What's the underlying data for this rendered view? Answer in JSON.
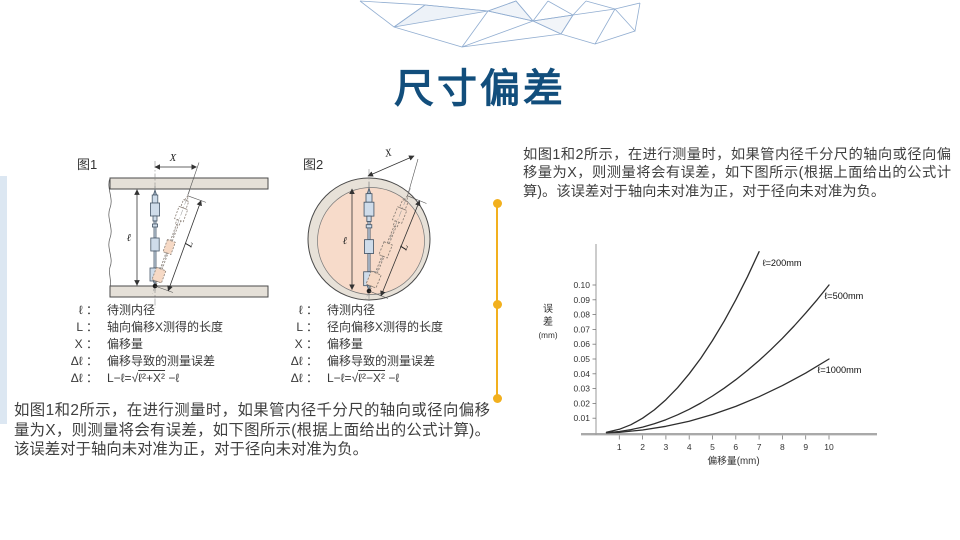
{
  "colors": {
    "title_text": "#124e7c",
    "accent": "#f2b01e",
    "leftbar": "#dce7f2"
  },
  "title": "尺寸偏差",
  "body_text": "如图1和2所示，在进行测量时，如果管内径千分尺的轴向或径向偏移量为X，则测量将会有误差，如下图所示(根据上面给出的公式计算)。该误差对于轴向未对准为正，对于径向未对准为负。",
  "figures": {
    "fig1": {
      "label": "图1",
      "dims": {
        "x": "X",
        "inner": "ℓ",
        "outer": "L"
      }
    },
    "fig2": {
      "label": "图2",
      "dims": {
        "x": "X",
        "inner": "ℓ",
        "outer": "L"
      }
    }
  },
  "legend_left": {
    "rows": [
      {
        "sym": "ℓ ：",
        "text": "待测内径"
      },
      {
        "sym": "L ：",
        "text": "轴向偏移X测得的长度"
      },
      {
        "sym": "X ：",
        "text": "偏移量"
      },
      {
        "sym": "Δℓ ：",
        "text": "偏移导致的测量误差"
      }
    ],
    "formula": {
      "sym": "Δℓ ：",
      "pre": "L−ℓ=√",
      "radicand": "ℓ²+X²",
      "post": " −ℓ"
    }
  },
  "legend_right": {
    "rows": [
      {
        "sym": "ℓ ：",
        "text": "待测内径"
      },
      {
        "sym": "L ：",
        "text": "径向偏移X测得的长度"
      },
      {
        "sym": "X ：",
        "text": "偏移量"
      },
      {
        "sym": "Δℓ ：",
        "text": "偏移导致的测量误差"
      }
    ],
    "formula": {
      "sym": "Δℓ ：",
      "pre": "L−ℓ=√",
      "radicand": "ℓ²−X²",
      "post": " −ℓ"
    }
  },
  "chart_data": {
    "type": "line",
    "title": "",
    "xlabel": "偏移量(mm)",
    "ylabel": "误差",
    "ylabel_unit": "(mm)",
    "xlim": [
      0,
      11.8
    ],
    "ylim": [
      0,
      0.128
    ],
    "grid": false,
    "legend_position": "inline-labels",
    "x_ticks": [
      1,
      2,
      3,
      4,
      5,
      6,
      7,
      8,
      9,
      10
    ],
    "y_ticks": [
      0.01,
      0.02,
      0.03,
      0.04,
      0.05,
      0.06,
      0.07,
      0.08,
      0.09,
      0.1
    ],
    "line_color": "#2e2e2e",
    "series": [
      {
        "name": "ℓ=200mm",
        "label_at": [
          7.15,
          0.113
        ],
        "points": [
          [
            0.45,
            0.0005
          ],
          [
            1,
            0.0025
          ],
          [
            1.5,
            0.0056
          ],
          [
            2,
            0.01
          ],
          [
            2.5,
            0.0156
          ],
          [
            3,
            0.0225
          ],
          [
            3.5,
            0.0306
          ],
          [
            4,
            0.04
          ],
          [
            4.5,
            0.0506
          ],
          [
            5,
            0.0625
          ],
          [
            5.5,
            0.0756
          ],
          [
            6,
            0.09
          ],
          [
            6.5,
            0.1056
          ],
          [
            7,
            0.1225
          ]
        ]
      },
      {
        "name": "ℓ=500mm",
        "label_at": [
          9.8,
          0.0905
        ],
        "points": [
          [
            0.45,
            0.0002
          ],
          [
            1,
            0.001
          ],
          [
            1.5,
            0.0023
          ],
          [
            2,
            0.004
          ],
          [
            2.5,
            0.0063
          ],
          [
            3,
            0.009
          ],
          [
            3.5,
            0.0123
          ],
          [
            4,
            0.016
          ],
          [
            4.5,
            0.0203
          ],
          [
            5,
            0.025
          ],
          [
            5.5,
            0.0303
          ],
          [
            6,
            0.036
          ],
          [
            6.5,
            0.0423
          ],
          [
            7,
            0.049
          ],
          [
            7.5,
            0.0563
          ],
          [
            8,
            0.064
          ],
          [
            8.5,
            0.0723
          ],
          [
            9,
            0.081
          ],
          [
            9.5,
            0.0903
          ],
          [
            10,
            0.1
          ]
        ]
      },
      {
        "name": "ℓ=1000mm",
        "label_at": [
          9.5,
          0.0405
        ],
        "points": [
          [
            0.45,
            0.0001
          ],
          [
            1,
            0.0005
          ],
          [
            2,
            0.002
          ],
          [
            3,
            0.0045
          ],
          [
            4,
            0.008
          ],
          [
            5,
            0.0125
          ],
          [
            6,
            0.018
          ],
          [
            7,
            0.0245
          ],
          [
            8,
            0.032
          ],
          [
            9,
            0.0405
          ],
          [
            10,
            0.05
          ]
        ]
      }
    ]
  }
}
